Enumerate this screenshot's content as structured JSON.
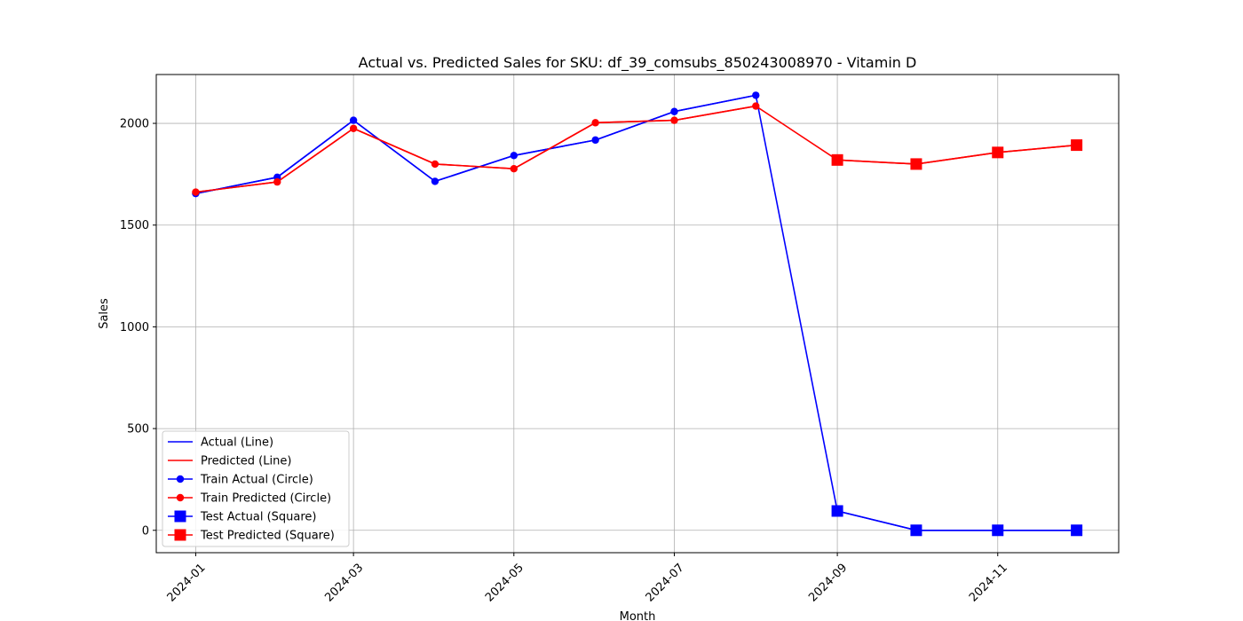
{
  "chart_data": {
    "type": "line",
    "title": "Actual vs. Predicted Sales for SKU: df_39_comsubs_850243008970 - Vitamin D",
    "xlabel": "Month",
    "ylabel": "Sales",
    "ylim": [
      -110,
      2240
    ],
    "xlim": [
      "2023-12-17",
      "2024-12-17"
    ],
    "grid": true,
    "legend_position": "lower-left",
    "x_tick_labels": [
      "2024-01",
      "2024-03",
      "2024-05",
      "2024-07",
      "2024-09",
      "2024-11"
    ],
    "y_ticks": [
      0,
      500,
      1000,
      1500,
      2000
    ],
    "colors": {
      "actual": "#0000ff",
      "predicted": "#ff0000",
      "grid": "#b0b0b0"
    },
    "series": [
      {
        "name": "Actual (Line)",
        "style": "line",
        "color": "#0000ff",
        "x": [
          "2024-01-01",
          "2024-02-01",
          "2024-03-01",
          "2024-04-01",
          "2024-05-01",
          "2024-06-01",
          "2024-07-01",
          "2024-08-01",
          "2024-09-01",
          "2024-10-01",
          "2024-11-01",
          "2024-12-01"
        ],
        "values": [
          1655,
          1735,
          2015,
          1715,
          1842,
          1918,
          2058,
          2138,
          95,
          0,
          0,
          0
        ]
      },
      {
        "name": "Predicted (Line)",
        "style": "line",
        "color": "#ff0000",
        "x": [
          "2024-01-01",
          "2024-02-01",
          "2024-03-01",
          "2024-04-01",
          "2024-05-01",
          "2024-06-01",
          "2024-07-01",
          "2024-08-01",
          "2024-09-01",
          "2024-10-01",
          "2024-11-01",
          "2024-12-01"
        ],
        "values": [
          1662,
          1712,
          1975,
          1800,
          1777,
          2003,
          2015,
          2085,
          1820,
          1800,
          1857,
          1893
        ]
      },
      {
        "name": "Train Actual (Circle)",
        "style": "circle",
        "color": "#0000ff",
        "x": [
          "2024-01-01",
          "2024-02-01",
          "2024-03-01",
          "2024-04-01",
          "2024-05-01",
          "2024-06-01",
          "2024-07-01",
          "2024-08-01"
        ],
        "values": [
          1655,
          1735,
          2015,
          1715,
          1842,
          1918,
          2058,
          2138
        ]
      },
      {
        "name": "Train Predicted (Circle)",
        "style": "circle",
        "color": "#ff0000",
        "x": [
          "2024-01-01",
          "2024-02-01",
          "2024-03-01",
          "2024-04-01",
          "2024-05-01",
          "2024-06-01",
          "2024-07-01",
          "2024-08-01"
        ],
        "values": [
          1662,
          1712,
          1975,
          1800,
          1777,
          2003,
          2015,
          2085
        ]
      },
      {
        "name": "Test Actual (Square)",
        "style": "square",
        "color": "#0000ff",
        "x": [
          "2024-09-01",
          "2024-10-01",
          "2024-11-01",
          "2024-12-01"
        ],
        "values": [
          95,
          0,
          0,
          0
        ]
      },
      {
        "name": "Test Predicted (Square)",
        "style": "square",
        "color": "#ff0000",
        "x": [
          "2024-09-01",
          "2024-10-01",
          "2024-11-01",
          "2024-12-01"
        ],
        "values": [
          1820,
          1800,
          1857,
          1893
        ]
      }
    ]
  }
}
